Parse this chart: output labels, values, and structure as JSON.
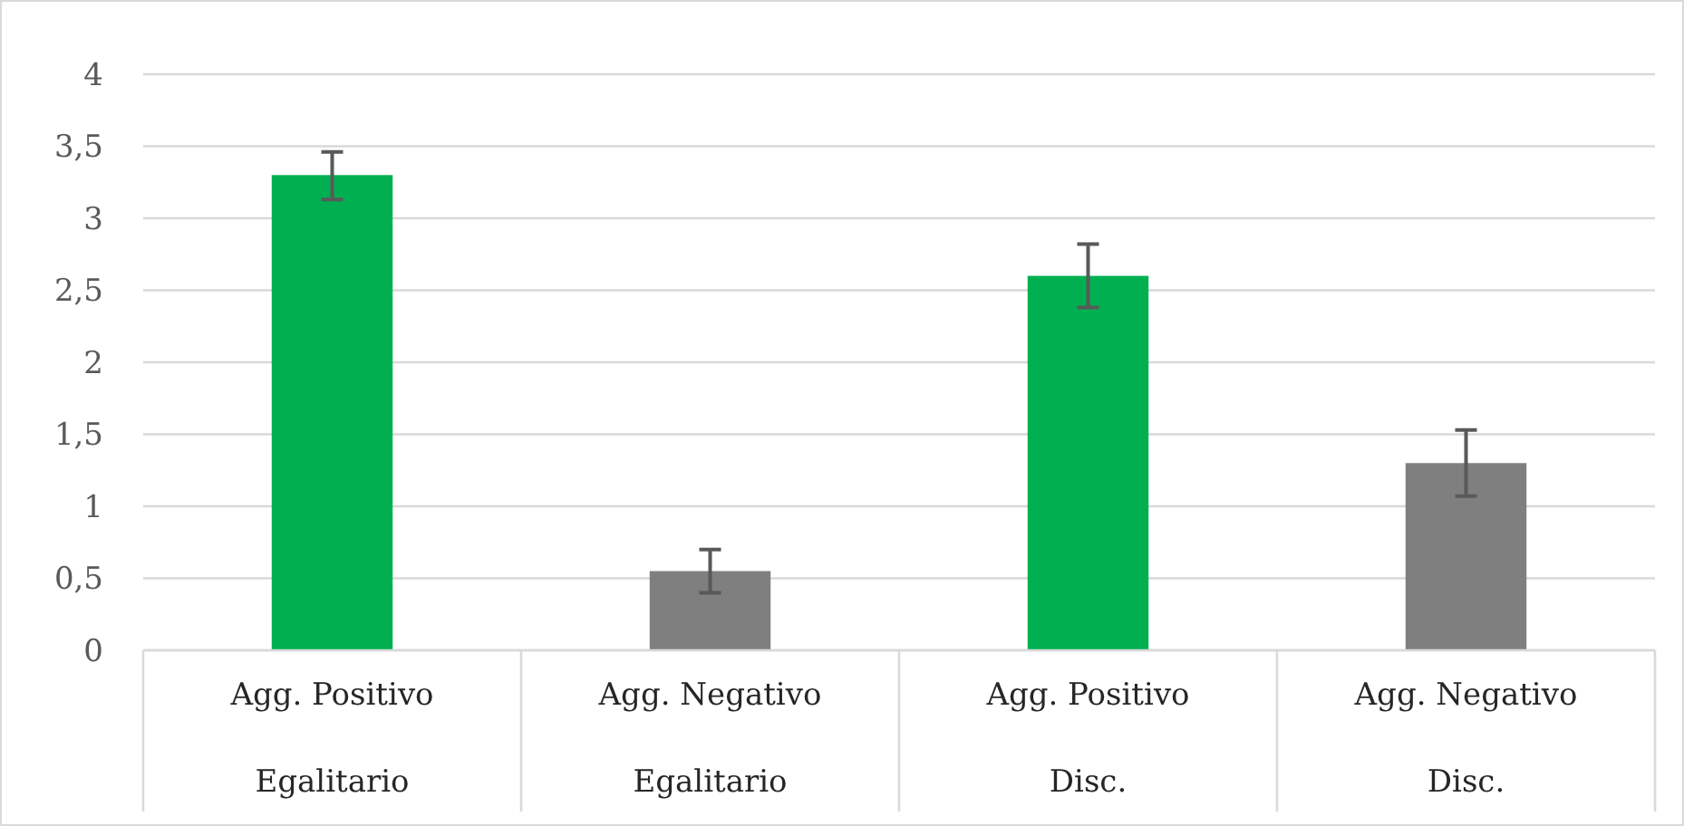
{
  "chart_data": {
    "type": "bar",
    "categories": [
      "Agg. Positivo\nEgalitario",
      "Agg. Negativo\nEgalitario",
      "Agg. Positivo\nDisc.",
      "Agg. Negativo\nDisc."
    ],
    "values": [
      3.3,
      0.55,
      2.6,
      1.3
    ],
    "colors": [
      "#00b050",
      "#7f7f7f",
      "#00b050",
      "#7f7f7f"
    ],
    "errors": [
      [
        3.13,
        3.46
      ],
      [
        0.4,
        0.7
      ],
      [
        2.38,
        2.82
      ],
      [
        1.07,
        1.53
      ]
    ],
    "ylim": [
      0,
      4
    ],
    "yticks": [
      0,
      {
        "value": 0.5,
        "label": "0,5"
      },
      1,
      {
        "value": 1.5,
        "label": "1,5"
      },
      2,
      {
        "value": 2.5,
        "label": "2,5"
      },
      3,
      {
        "value": 3.5,
        "label": "3,5"
      },
      4
    ],
    "grid": "y"
  }
}
